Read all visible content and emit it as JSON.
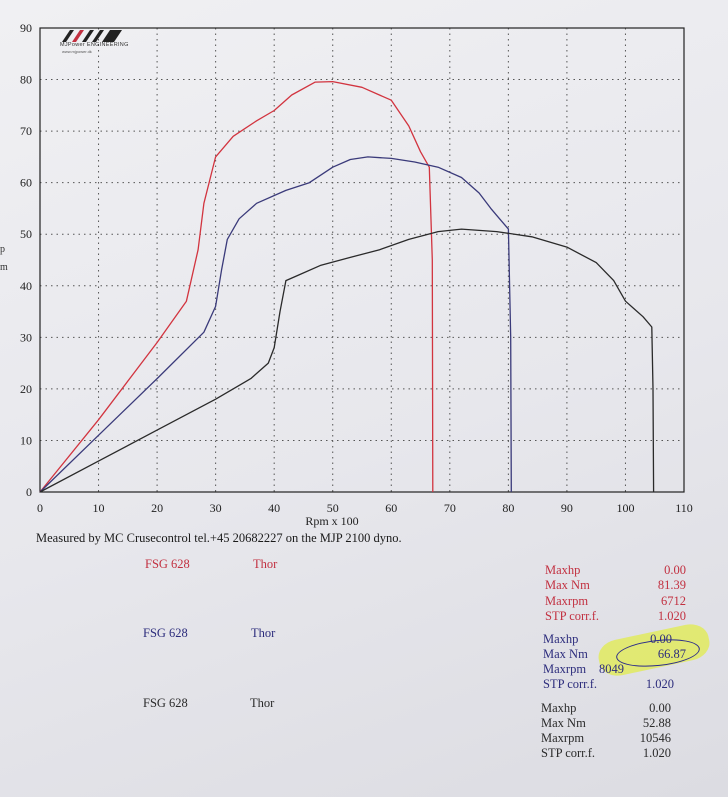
{
  "chart_data": {
    "type": "line",
    "xlabel": "Rpm x 100",
    "ylabel": "",
    "xlim": [
      0,
      110
    ],
    "ylim": [
      0,
      90
    ],
    "x_ticks": [
      "0",
      "10",
      "20",
      "30",
      "40",
      "50",
      "60",
      "70",
      "80",
      "90",
      "100",
      "110"
    ],
    "y_ticks": [
      "0",
      "10",
      "20",
      "30",
      "40",
      "50",
      "60",
      "70",
      "80",
      "90"
    ],
    "grid": true,
    "series": [
      {
        "color": "#d2343f",
        "points": [
          [
            0,
            0
          ],
          [
            10,
            14
          ],
          [
            20,
            29
          ],
          [
            25,
            37
          ],
          [
            27,
            47
          ],
          [
            28,
            56
          ],
          [
            30,
            65
          ],
          [
            33,
            69
          ],
          [
            37,
            72
          ],
          [
            40,
            74
          ],
          [
            43,
            77
          ],
          [
            47,
            79.5
          ],
          [
            50,
            79.6
          ],
          [
            55,
            78.5
          ],
          [
            60,
            76
          ],
          [
            63,
            71
          ],
          [
            65,
            66
          ],
          [
            66.5,
            63
          ],
          [
            67,
            45
          ],
          [
            67.1,
            0
          ]
        ]
      },
      {
        "color": "#3a3a7a",
        "points": [
          [
            0,
            0
          ],
          [
            10,
            11
          ],
          [
            20,
            22
          ],
          [
            28,
            31
          ],
          [
            30,
            36
          ],
          [
            31,
            43
          ],
          [
            32,
            49
          ],
          [
            34,
            53
          ],
          [
            37,
            56
          ],
          [
            42,
            58.5
          ],
          [
            46,
            60
          ],
          [
            50,
            63
          ],
          [
            53,
            64.5
          ],
          [
            56,
            65
          ],
          [
            60,
            64.7
          ],
          [
            64,
            64
          ],
          [
            68,
            63
          ],
          [
            72,
            61
          ],
          [
            75,
            58
          ],
          [
            77,
            55
          ],
          [
            78.5,
            53
          ],
          [
            80,
            51
          ],
          [
            80.4,
            30
          ],
          [
            80.5,
            0
          ]
        ]
      },
      {
        "color": "#2a2a2a",
        "points": [
          [
            0,
            0
          ],
          [
            10,
            6
          ],
          [
            20,
            12
          ],
          [
            30,
            18
          ],
          [
            36,
            22
          ],
          [
            39,
            25
          ],
          [
            40,
            28
          ],
          [
            41,
            35
          ],
          [
            42,
            41
          ],
          [
            44,
            42
          ],
          [
            48,
            44
          ],
          [
            53,
            45.5
          ],
          [
            58,
            47
          ],
          [
            63,
            49
          ],
          [
            68,
            50.5
          ],
          [
            72,
            51
          ],
          [
            78,
            50.5
          ],
          [
            84,
            49.5
          ],
          [
            90,
            47.5
          ],
          [
            95,
            44.5
          ],
          [
            98,
            41
          ],
          [
            100,
            37
          ],
          [
            103,
            34
          ],
          [
            104.5,
            32
          ],
          [
            104.7,
            20
          ],
          [
            104.8,
            0
          ]
        ]
      }
    ]
  },
  "caption": "Measured by MC Crusecontrol tel.+45 20682227 on the MJP 2100 dyno.",
  "left_edge_letters": [
    "p",
    "m"
  ],
  "logo": {
    "text": "MJPower ENGINEERING",
    "sub": "www.mjpower.dk"
  },
  "runs": [
    {
      "id": "FSG 628",
      "name": "Thor",
      "color": "#c23040",
      "stats": [
        {
          "label": "Maxhp",
          "value": "0.00"
        },
        {
          "label": "Max Nm",
          "value": "81.39"
        },
        {
          "label": "Maxrpm",
          "value": "6712"
        },
        {
          "label": "STP corr.f.",
          "value": "1.020"
        }
      ]
    },
    {
      "id": "FSG 628",
      "name": "Thor",
      "color": "#2c2c7c",
      "stats": [
        {
          "label": "Maxhp",
          "value": "0.00"
        },
        {
          "label": "Max Nm",
          "value": "66.87"
        },
        {
          "label": "Maxrpm",
          "value": "8049"
        },
        {
          "label": "STP corr.f.",
          "value": "1.020"
        }
      ]
    },
    {
      "id": "FSG 628",
      "name": "Thor",
      "color": "#2a2a2a",
      "stats": [
        {
          "label": "Maxhp",
          "value": "0.00"
        },
        {
          "label": "Max Nm",
          "value": "52.88"
        },
        {
          "label": "Maxrpm",
          "value": "10546"
        },
        {
          "label": "STP corr.f.",
          "value": "1.020"
        }
      ]
    }
  ]
}
